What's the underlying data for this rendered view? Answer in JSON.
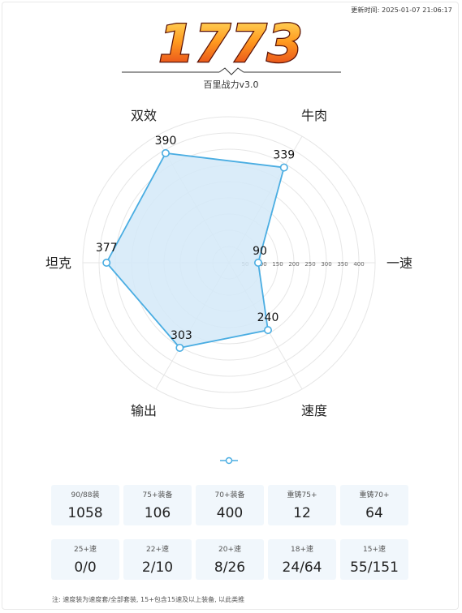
{
  "header": {
    "update_time": "更新时间: 2025-01-07 21:06:17",
    "score": "1773",
    "version": "百里战力v3.0"
  },
  "chart_data": {
    "type": "radar",
    "axes": [
      "一速",
      "牛肉",
      "双效",
      "坦克",
      "输出",
      "速度"
    ],
    "values": [
      90,
      339,
      390,
      377,
      303,
      240
    ],
    "rlim": [
      0,
      450
    ],
    "tick_labels": [
      "50",
      "100",
      "150",
      "200",
      "250",
      "300",
      "350",
      "400"
    ],
    "grid": true,
    "fill_color": "#d3e9f8",
    "line_color": "#4aade2"
  },
  "stats": {
    "row1": [
      {
        "label": "90/88装",
        "value": "1058"
      },
      {
        "label": "75+装备",
        "value": "106"
      },
      {
        "label": "70+装备",
        "value": "400"
      },
      {
        "label": "重铸75+",
        "value": "12"
      },
      {
        "label": "重铸70+",
        "value": "64"
      }
    ],
    "row2": [
      {
        "label": "25+速",
        "value": "0/0"
      },
      {
        "label": "22+速",
        "value": "2/10"
      },
      {
        "label": "20+速",
        "value": "8/26"
      },
      {
        "label": "18+速",
        "value": "24/64"
      },
      {
        "label": "15+速",
        "value": "55/151"
      }
    ]
  },
  "footnote": "注: 速度装为速度套/全部套装, 15+包含15速及以上装备, 以此类推"
}
